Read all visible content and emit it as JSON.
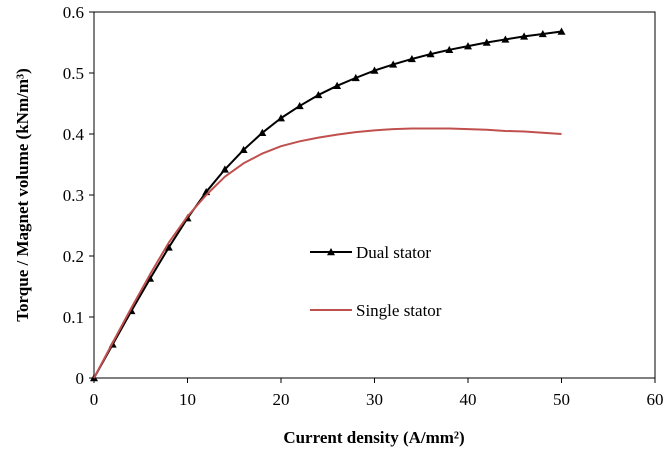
{
  "chart_data": {
    "type": "line",
    "xlabel": "Current density (A/mm²)",
    "ylabel": "Torque / Magnet volume (kNm/m³)",
    "xlim": [
      0,
      60
    ],
    "ylim": [
      0,
      0.6
    ],
    "x_ticks": [
      "0",
      "10",
      "20",
      "30",
      "40",
      "50",
      "60"
    ],
    "y_ticks": [
      "0",
      "0.1",
      "0.2",
      "0.3",
      "0.4",
      "0.5",
      "0.6"
    ],
    "grid": false,
    "legend_position": "center-right",
    "series": [
      {
        "name": "Dual stator",
        "color": "#000000",
        "marker": "triangle",
        "x": [
          0,
          2,
          4,
          6,
          8,
          10,
          12,
          14,
          16,
          18,
          20,
          22,
          24,
          26,
          28,
          30,
          32,
          34,
          36,
          38,
          40,
          42,
          44,
          46,
          48,
          50
        ],
        "y": [
          0,
          0.055,
          0.11,
          0.163,
          0.214,
          0.262,
          0.305,
          0.342,
          0.374,
          0.402,
          0.426,
          0.446,
          0.464,
          0.479,
          0.492,
          0.504,
          0.514,
          0.523,
          0.531,
          0.538,
          0.544,
          0.55,
          0.555,
          0.56,
          0.564,
          0.568
        ]
      },
      {
        "name": "Single stator",
        "color": "#c0504d",
        "marker": "none",
        "x": [
          0,
          2,
          4,
          6,
          8,
          10,
          12,
          14,
          16,
          18,
          20,
          22,
          24,
          26,
          28,
          30,
          32,
          34,
          36,
          38,
          40,
          42,
          44,
          46,
          48,
          50
        ],
        "y": [
          0,
          0.058,
          0.115,
          0.17,
          0.222,
          0.265,
          0.3,
          0.33,
          0.352,
          0.368,
          0.38,
          0.388,
          0.394,
          0.399,
          0.403,
          0.406,
          0.408,
          0.409,
          0.409,
          0.409,
          0.408,
          0.407,
          0.405,
          0.404,
          0.402,
          0.4
        ]
      }
    ]
  }
}
